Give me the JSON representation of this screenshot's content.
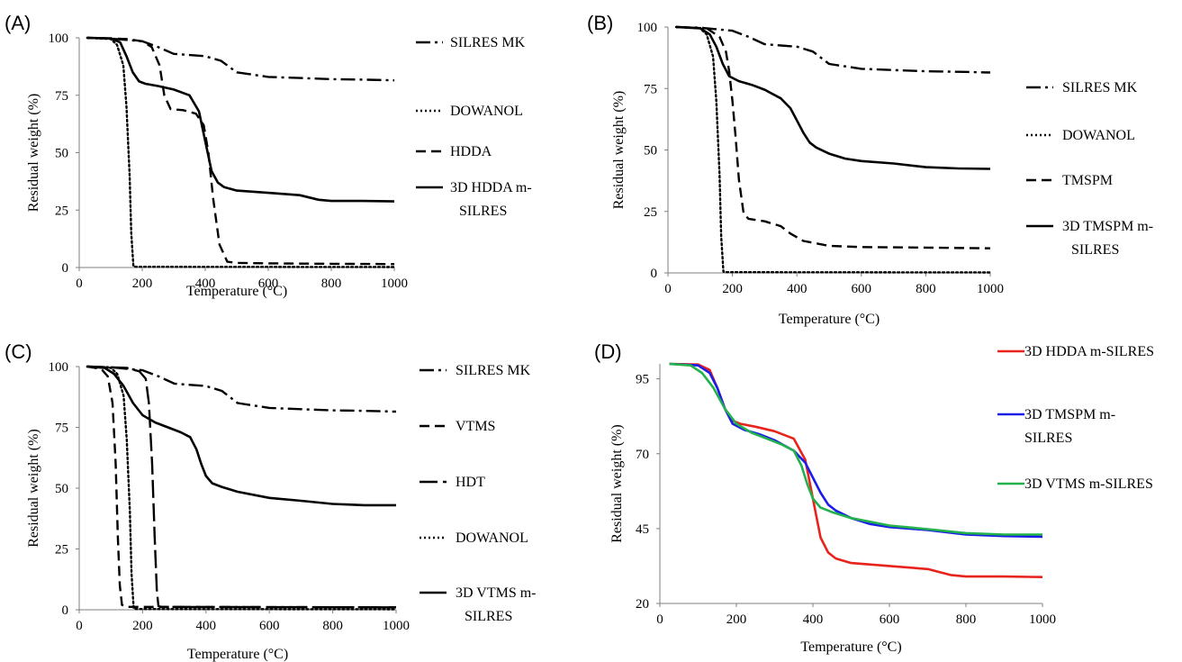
{
  "chart_data": [
    {
      "panel": "(A)",
      "type": "line",
      "xlabel": "Temperature (°C)",
      "ylabel": "Residual weight (%)",
      "xlim": [
        0,
        1000
      ],
      "ylim": [
        0,
        100
      ],
      "xticks": [
        "0",
        "200",
        "400",
        "600",
        "800",
        "1000"
      ],
      "yticks": [
        "0",
        "25",
        "50",
        "75",
        "100"
      ],
      "legend_position": "right",
      "series": [
        {
          "name": "SILRES MK",
          "style": "dashdot",
          "color": "#000000",
          "x": [
            25,
            100,
            200,
            250,
            300,
            350,
            400,
            450,
            500,
            600,
            700,
            800,
            900,
            1000
          ],
          "y": [
            100,
            99.7,
            98.5,
            96,
            93,
            92.5,
            92,
            90,
            85,
            83,
            82.5,
            82,
            81.8,
            81.5
          ]
        },
        {
          "name": "DOWANOL",
          "style": "dotted",
          "color": "#000000",
          "x": [
            25,
            100,
            120,
            140,
            150,
            160,
            165,
            172,
            180,
            1000
          ],
          "y": [
            100,
            99.5,
            97,
            88,
            70,
            40,
            15,
            0.5,
            0.3,
            0.2
          ]
        },
        {
          "name": "HDDA",
          "style": "dashed",
          "color": "#000000",
          "x": [
            25,
            150,
            200,
            230,
            255,
            270,
            290,
            330,
            370,
            395,
            410,
            425,
            445,
            470,
            500,
            600,
            800,
            1000
          ],
          "y": [
            100,
            99.5,
            98.5,
            96,
            88,
            75,
            69,
            68.5,
            67,
            62,
            50,
            30,
            10,
            2.5,
            2,
            1.8,
            1.6,
            1.5
          ]
        },
        {
          "name": "3D HDDA m-SILRES",
          "style": "solid",
          "color": "#000000",
          "x": [
            25,
            100,
            130,
            150,
            170,
            190,
            210,
            250,
            300,
            350,
            380,
            400,
            420,
            440,
            460,
            500,
            600,
            700,
            760,
            800,
            900,
            1000
          ],
          "y": [
            100,
            99.8,
            98,
            92,
            85,
            81,
            80,
            79,
            77.5,
            75,
            68,
            55,
            42,
            37,
            35,
            33.5,
            32.5,
            31.5,
            29.5,
            29,
            29,
            28.8
          ]
        }
      ]
    },
    {
      "panel": "(B)",
      "type": "line",
      "xlabel": "Temperature (°C)",
      "ylabel": "Residual weight (%)",
      "xlim": [
        0,
        1000
      ],
      "ylim": [
        0,
        100
      ],
      "xticks": [
        "0",
        "200",
        "400",
        "600",
        "800",
        "1000"
      ],
      "yticks": [
        "0",
        "25",
        "50",
        "75",
        "100"
      ],
      "legend_position": "right",
      "series": [
        {
          "name": "SILRES MK",
          "style": "dashdot",
          "color": "#000000",
          "x": [
            25,
            100,
            200,
            250,
            300,
            350,
            400,
            450,
            500,
            600,
            700,
            800,
            900,
            1000
          ],
          "y": [
            100,
            99.7,
            98.5,
            96,
            93,
            92.5,
            92,
            90,
            85,
            83,
            82.5,
            82,
            81.8,
            81.5
          ]
        },
        {
          "name": "DOWANOL",
          "style": "dotted",
          "color": "#000000",
          "x": [
            25,
            100,
            120,
            140,
            150,
            160,
            165,
            172,
            180,
            1000
          ],
          "y": [
            100,
            99.5,
            97,
            88,
            70,
            40,
            15,
            0.5,
            0.3,
            0.2
          ]
        },
        {
          "name": "TMSPM",
          "style": "dashed",
          "color": "#000000",
          "x": [
            25,
            120,
            160,
            180,
            190,
            200,
            210,
            220,
            235,
            250,
            300,
            350,
            380,
            420,
            500,
            600,
            800,
            1000
          ],
          "y": [
            100,
            99.5,
            96,
            90,
            82,
            70,
            55,
            38,
            24,
            22,
            21,
            19,
            16,
            13,
            11,
            10.5,
            10.3,
            10
          ]
        },
        {
          "name": "3D TMSPM m-SILRES",
          "style": "solid",
          "color": "#000000",
          "x": [
            25,
            100,
            130,
            150,
            170,
            190,
            220,
            260,
            300,
            350,
            380,
            400,
            420,
            440,
            460,
            500,
            550,
            600,
            700,
            800,
            900,
            1000
          ],
          "y": [
            100,
            99.5,
            97,
            92,
            85,
            80,
            78,
            76.5,
            74.5,
            71,
            67,
            62,
            57,
            53,
            51,
            48.5,
            46.5,
            45.5,
            44.5,
            43,
            42.5,
            42.3
          ]
        }
      ]
    },
    {
      "panel": "(C)",
      "type": "line",
      "xlabel": "Temperature (°C)",
      "ylabel": "Residual weight (%)",
      "xlim": [
        0,
        1000
      ],
      "ylim": [
        0,
        100
      ],
      "xticks": [
        "0",
        "200",
        "400",
        "600",
        "800",
        "1000"
      ],
      "yticks": [
        "0",
        "25",
        "50",
        "75",
        "100"
      ],
      "legend_position": "right",
      "series": [
        {
          "name": "SILRES MK",
          "style": "dashdot",
          "color": "#000000",
          "x": [
            25,
            100,
            200,
            250,
            300,
            350,
            400,
            450,
            500,
            600,
            700,
            800,
            900,
            1000
          ],
          "y": [
            100,
            99.7,
            98.5,
            96,
            93,
            92.5,
            92,
            90,
            85,
            83,
            82.5,
            82,
            81.8,
            81.5
          ]
        },
        {
          "name": "VTMS",
          "style": "dashed",
          "color": "#000000",
          "x": [
            25,
            70,
            90,
            105,
            115,
            122,
            128,
            135,
            150,
            1000
          ],
          "y": [
            100,
            99,
            96,
            85,
            60,
            30,
            10,
            2,
            1.2,
            1
          ]
        },
        {
          "name": "HDT",
          "style": "longdash",
          "color": "#000000",
          "x": [
            25,
            150,
            190,
            210,
            220,
            230,
            238,
            245,
            250,
            260,
            1000
          ],
          "y": [
            100,
            99.5,
            98,
            95,
            85,
            60,
            30,
            8,
            1.5,
            1.2,
            1
          ]
        },
        {
          "name": "DOWANOL",
          "style": "dotted",
          "color": "#000000",
          "x": [
            25,
            100,
            120,
            140,
            150,
            160,
            165,
            172,
            180,
            1000
          ],
          "y": [
            100,
            99.5,
            97,
            88,
            70,
            40,
            15,
            0.5,
            0.3,
            0.2
          ]
        },
        {
          "name": "3D VTMS m-SILRES",
          "style": "solid",
          "color": "#000000",
          "x": [
            25,
            80,
            110,
            140,
            170,
            200,
            240,
            280,
            320,
            350,
            370,
            385,
            400,
            420,
            450,
            500,
            600,
            700,
            800,
            900,
            1000
          ],
          "y": [
            100,
            99.5,
            97,
            92,
            85,
            80,
            77,
            75,
            73,
            71,
            66,
            60,
            55,
            52,
            50.5,
            48.5,
            46,
            44.8,
            43.5,
            43,
            43
          ]
        }
      ]
    },
    {
      "panel": "(D)",
      "type": "line",
      "xlabel": "Temperature (°C)",
      "ylabel": "Residual weight (%)",
      "xlim": [
        0,
        1000
      ],
      "ylim": [
        20,
        100
      ],
      "xticks": [
        "0",
        "200",
        "400",
        "600",
        "800",
        "1000"
      ],
      "yticks": [
        "20",
        "45",
        "70",
        "95"
      ],
      "legend_position": "right",
      "series": [
        {
          "name": "3D HDDA m-SILRES",
          "style": "solid",
          "color": "#e8231c",
          "x": [
            25,
            100,
            130,
            150,
            170,
            190,
            210,
            250,
            300,
            350,
            380,
            400,
            420,
            440,
            460,
            500,
            600,
            700,
            760,
            800,
            900,
            1000
          ],
          "y": [
            100,
            99.8,
            98,
            92,
            85,
            81,
            80,
            79,
            77.5,
            75,
            68,
            55,
            42,
            37,
            35,
            33.5,
            32.5,
            31.5,
            29.5,
            29,
            29,
            28.8
          ]
        },
        {
          "name": "3D TMSPM m-SILRES",
          "style": "solid",
          "color": "#1c1ce8",
          "x": [
            25,
            100,
            130,
            150,
            170,
            190,
            220,
            260,
            300,
            350,
            380,
            400,
            420,
            440,
            460,
            500,
            550,
            600,
            700,
            800,
            900,
            1000
          ],
          "y": [
            100,
            99.5,
            97,
            92,
            85,
            80,
            78,
            76.5,
            74.5,
            71,
            67,
            62,
            57,
            53,
            51,
            48.5,
            46.5,
            45.5,
            44.5,
            43,
            42.5,
            42.3
          ]
        },
        {
          "name": "3D VTMS m-SILRES",
          "style": "solid",
          "color": "#22b14c",
          "x": [
            25,
            80,
            110,
            140,
            170,
            200,
            240,
            280,
            320,
            350,
            370,
            385,
            400,
            420,
            450,
            500,
            600,
            700,
            800,
            900,
            1000
          ],
          "y": [
            100,
            99.5,
            97,
            92,
            85,
            80,
            77,
            75,
            73,
            71,
            66,
            60,
            55,
            52,
            50.5,
            48.5,
            46,
            44.8,
            43.5,
            43,
            43
          ]
        }
      ]
    }
  ]
}
